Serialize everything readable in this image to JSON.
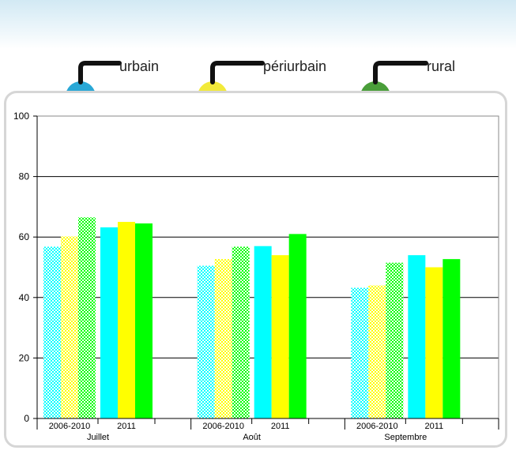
{
  "legend": [
    {
      "label": "urbain",
      "color": "#2aa8d6"
    },
    {
      "label": "périurbain",
      "color": "#f2ea3a"
    },
    {
      "label": "rural",
      "color": "#4a9e3a"
    }
  ],
  "chart_data": {
    "type": "bar",
    "title": "",
    "xlabel": "",
    "ylabel": "",
    "ylim": [
      0,
      100
    ],
    "yticks": [
      0,
      20,
      40,
      60,
      80,
      100
    ],
    "grid": true,
    "legend_position": "top",
    "groups": [
      {
        "label": "Juillet",
        "subgroups": [
          {
            "label": "2006-2010",
            "pattern": "checkered",
            "values": [
              56.8,
              60.2,
              66.5
            ]
          },
          {
            "label": "2011",
            "pattern": "solid",
            "values": [
              63.2,
              65,
              64.5
            ]
          }
        ]
      },
      {
        "label": "Août",
        "subgroups": [
          {
            "label": "2006-2010",
            "pattern": "checkered",
            "values": [
              50.5,
              52.7,
              56.8
            ]
          },
          {
            "label": "2011",
            "pattern": "solid",
            "values": [
              57,
              54,
              61
            ]
          }
        ]
      },
      {
        "label": "Septembre",
        "subgroups": [
          {
            "label": "2006-2010",
            "pattern": "checkered",
            "values": [
              43.2,
              44,
              51.5
            ]
          },
          {
            "label": "2011",
            "pattern": "solid",
            "values": [
              54,
              50,
              52.7
            ]
          }
        ]
      }
    ],
    "series_colors": [
      "#00ffff",
      "#ffff00",
      "#00ff00"
    ]
  }
}
